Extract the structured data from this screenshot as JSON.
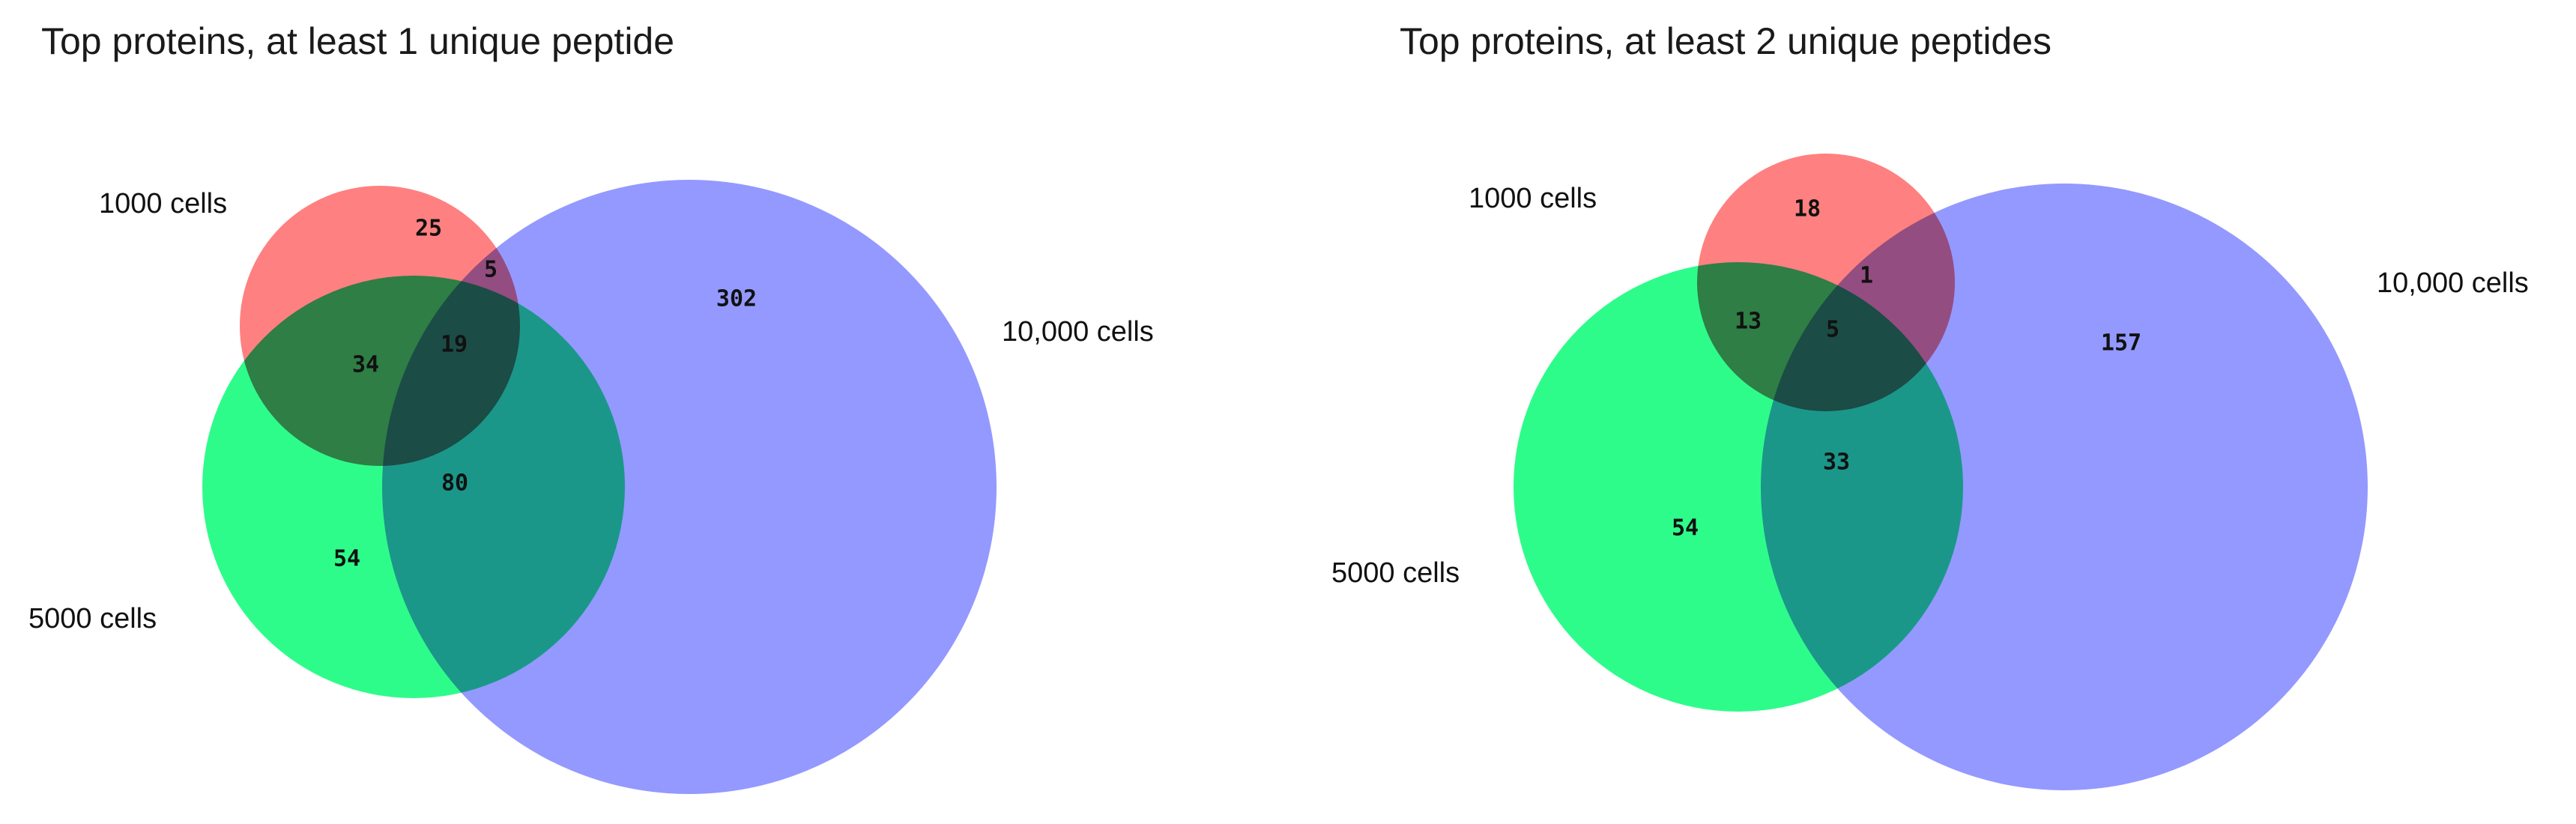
{
  "panels": [
    {
      "title": "Top proteins, at least 1 unique peptide",
      "sets": [
        {
          "label": "1000 cells",
          "color": "#ff8080"
        },
        {
          "label": "5000 cells",
          "color": "#2efc8a"
        },
        {
          "label": "10,000 cells",
          "color": "#9499ff"
        }
      ],
      "counts": {
        "only_1000": "25",
        "1000_and_10000": "5",
        "1000_and_5000": "34",
        "all_three": "19",
        "only_10000": "302",
        "5000_and_10000": "80",
        "only_5000": "54"
      }
    },
    {
      "title": "Top proteins, at least 2 unique peptides",
      "sets": [
        {
          "label": "1000 cells",
          "color": "#ff8080"
        },
        {
          "label": "5000 cells",
          "color": "#2efc8a"
        },
        {
          "label": "10,000 cells",
          "color": "#9499ff"
        }
      ],
      "counts": {
        "only_1000": "18",
        "1000_and_10000": "1",
        "1000_and_5000": "13",
        "all_three": "5",
        "only_10000": "157",
        "5000_and_10000": "33",
        "only_5000": "54"
      }
    }
  ]
}
